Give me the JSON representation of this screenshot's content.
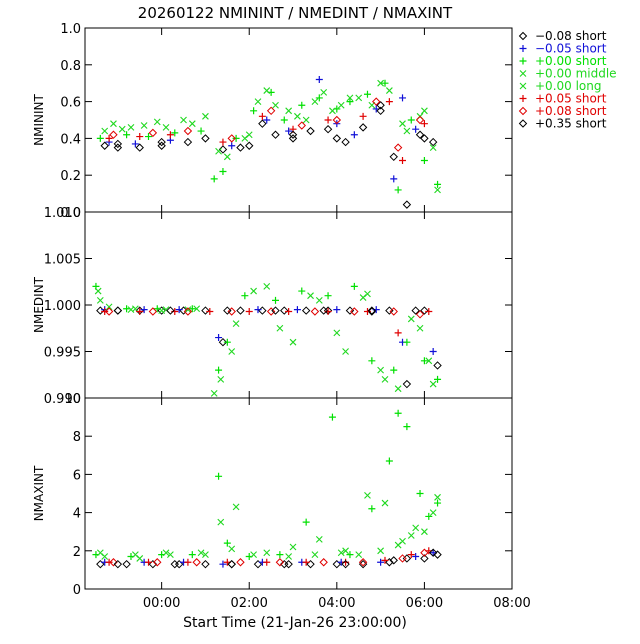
{
  "title": "20260122 NMININT / NMEDINT / NMAXINT",
  "xlabel": "Start Time (21-Jan-26 23:00:00)",
  "colors": {
    "black": "#000000",
    "blue": "#1010d8",
    "green": "#00e000",
    "light_green": "#20d820",
    "red": "#e00000"
  },
  "legend": [
    {
      "symbol": "diamond",
      "color": "#000000",
      "label": "−0.08 short"
    },
    {
      "symbol": "plus",
      "color": "#1010d8",
      "label": "−0.05 short"
    },
    {
      "symbol": "plus",
      "color": "#00e000",
      "label": "+0.00 short"
    },
    {
      "symbol": "cross",
      "color": "#20d820",
      "label": "+0.00 middle"
    },
    {
      "symbol": "cross",
      "color": "#20d820",
      "label": "+0.00 long"
    },
    {
      "symbol": "plus",
      "color": "#e00000",
      "label": "+0.05 short"
    },
    {
      "symbol": "diamond",
      "color": "#e00000",
      "label": "+0.08 short"
    },
    {
      "symbol": "diamond",
      "color": "#000000",
      "label": "+0.35 short"
    }
  ],
  "chart_data": [
    {
      "type": "scatter",
      "ylabel": "NMININT",
      "xlim": [
        -0.75,
        9
      ],
      "ylim": [
        0.0,
        1.0
      ],
      "yticks": [
        "0.0",
        "0.2",
        "0.4",
        "0.6",
        "0.8",
        "1.0"
      ],
      "ytick_values": [
        0.0,
        0.2,
        0.4,
        0.6,
        0.8,
        1.0
      ],
      "show_x_labels": false,
      "series": [
        {
          "name": "-0.08 short",
          "symbol": "diamond",
          "color": "#000000",
          "x": [
            -0.3,
            0.0,
            0.5,
            1.0,
            1.6,
            2.4,
            2.8,
            3.3,
            3.6,
            4.0,
            4.4,
            4.8,
            5.2,
            5.6,
            6.0,
            6.3,
            6.6,
            6.9,
            7.2
          ],
          "y": [
            0.36,
            0.35,
            0.35,
            0.36,
            0.38,
            0.34,
            0.35,
            0.48,
            0.42,
            0.4,
            0.44,
            0.45,
            0.38,
            0.46,
            0.58,
            0.3,
            0.04,
            0.42,
            0.38
          ]
        },
        {
          "name": "-0.05 short",
          "symbol": "plus",
          "color": "#1010d8",
          "x": [
            -0.2,
            0.4,
            1.2,
            2.6,
            3.4,
            3.9,
            4.6,
            5.0,
            5.4,
            5.9,
            6.3,
            6.5,
            6.8
          ],
          "y": [
            0.38,
            0.37,
            0.39,
            0.36,
            0.5,
            0.44,
            0.72,
            0.48,
            0.42,
            0.56,
            0.18,
            0.62,
            0.45
          ]
        },
        {
          "name": "+0.00 short",
          "symbol": "plus",
          "color": "#00e000",
          "x": [
            -0.4,
            0.2,
            0.7,
            1.3,
            1.9,
            2.2,
            2.4,
            2.7,
            3.1,
            3.5,
            3.8,
            4.2,
            4.6,
            5.0,
            5.3,
            5.7,
            6.1,
            6.4,
            6.7,
            7.0,
            7.3
          ],
          "y": [
            0.4,
            0.42,
            0.41,
            0.43,
            0.44,
            0.18,
            0.22,
            0.4,
            0.55,
            0.65,
            0.5,
            0.58,
            0.62,
            0.56,
            0.6,
            0.64,
            0.7,
            0.12,
            0.5,
            0.28,
            0.15
          ]
        },
        {
          "name": "+0.00 middle",
          "symbol": "cross",
          "color": "#20d820",
          "x": [
            -0.3,
            0.1,
            0.6,
            1.1,
            1.7,
            2.3,
            2.9,
            3.2,
            3.6,
            4.1,
            4.5,
            4.9,
            5.3,
            5.8,
            6.2,
            6.6,
            7.0,
            7.3
          ],
          "y": [
            0.44,
            0.45,
            0.47,
            0.46,
            0.48,
            0.33,
            0.4,
            0.6,
            0.58,
            0.52,
            0.6,
            0.55,
            0.62,
            0.58,
            0.66,
            0.44,
            0.55,
            0.12
          ]
        },
        {
          "name": "+0.00 long",
          "symbol": "cross",
          "color": "#20d820",
          "x": [
            -0.1,
            0.3,
            0.9,
            1.5,
            2.0,
            2.5,
            3.0,
            3.4,
            3.9,
            4.3,
            4.7,
            5.1,
            5.5,
            6.0,
            6.5,
            6.9,
            7.2
          ],
          "y": [
            0.48,
            0.46,
            0.49,
            0.5,
            0.52,
            0.3,
            0.42,
            0.66,
            0.55,
            0.5,
            0.65,
            0.58,
            0.62,
            0.7,
            0.48,
            0.52,
            0.35
          ]
        },
        {
          "name": "+0.05 short",
          "symbol": "plus",
          "color": "#e00000",
          "x": [
            -0.2,
            0.5,
            1.2,
            2.4,
            3.3,
            4.0,
            4.8,
            5.6,
            6.2,
            6.5,
            7.0
          ],
          "y": [
            0.4,
            0.41,
            0.42,
            0.38,
            0.52,
            0.45,
            0.5,
            0.52,
            0.6,
            0.28,
            0.48
          ]
        },
        {
          "name": "+0.08 short",
          "symbol": "diamond",
          "color": "#e00000",
          "x": [
            -0.1,
            0.8,
            1.6,
            2.6,
            3.5,
            4.2,
            5.0,
            5.9,
            6.4,
            6.9
          ],
          "y": [
            0.42,
            0.43,
            0.44,
            0.4,
            0.55,
            0.47,
            0.5,
            0.6,
            0.35,
            0.5
          ]
        },
        {
          "name": "+0.35 short",
          "symbol": "diamond",
          "color": "#000000",
          "x": [
            0.0,
            1.0,
            2.0,
            3.0,
            4.0,
            5.0,
            6.0,
            7.0
          ],
          "y": [
            0.37,
            0.38,
            0.4,
            0.36,
            0.42,
            0.4,
            0.55,
            0.4
          ]
        }
      ]
    },
    {
      "type": "scatter",
      "ylabel": "NMEDINT",
      "xlim": [
        -0.75,
        9
      ],
      "ylim": [
        0.99,
        1.01
      ],
      "yticks": [
        "0.990",
        "0.995",
        "1.000",
        "1.005",
        "1.010"
      ],
      "ytick_values": [
        0.99,
        0.995,
        1.0,
        1.005,
        1.01
      ],
      "show_x_labels": false,
      "series": [
        {
          "name": "-0.08 short",
          "symbol": "diamond",
          "color": "#000000",
          "x": [
            -0.4,
            0.0,
            0.5,
            1.0,
            1.5,
            2.0,
            2.4,
            2.8,
            3.3,
            3.8,
            4.3,
            4.8,
            5.3,
            5.8,
            6.2,
            6.6,
            7.0,
            7.3
          ],
          "y": [
            0.9994,
            0.9994,
            0.9994,
            0.9994,
            0.9994,
            0.9994,
            0.996,
            0.9994,
            0.9994,
            0.9994,
            0.9994,
            0.9994,
            0.9994,
            0.9993,
            0.9994,
            0.9915,
            0.9994,
            0.9935
          ]
        },
        {
          "name": "-0.05 short",
          "symbol": "plus",
          "color": "#1010d8",
          "x": [
            -0.3,
            0.6,
            1.4,
            2.3,
            3.2,
            4.1,
            5.0,
            5.9,
            6.5,
            7.2
          ],
          "y": [
            0.9995,
            0.9995,
            0.9995,
            0.9965,
            0.9995,
            0.9995,
            0.9995,
            0.9995,
            0.996,
            0.995
          ]
        },
        {
          "name": "+0.00 short",
          "symbol": "plus",
          "color": "#00e000",
          "x": [
            -0.5,
            0.2,
            0.9,
            1.7,
            2.3,
            2.5,
            2.9,
            3.6,
            4.2,
            4.8,
            5.4,
            5.8,
            6.3,
            6.6,
            7.0,
            7.3
          ],
          "y": [
            1.002,
            0.9996,
            0.9996,
            0.9996,
            0.993,
            0.996,
            1.001,
            1.0005,
            1.0015,
            1.001,
            1.002,
            0.994,
            0.993,
            0.996,
            0.994,
            0.992
          ]
        },
        {
          "name": "+0.00 middle",
          "symbol": "cross",
          "color": "#20d820",
          "x": [
            -0.45,
            -0.2,
            0.4,
            1.1,
            1.8,
            2.35,
            2.6,
            3.1,
            3.7,
            4.4,
            5.0,
            5.6,
            6.0,
            6.4,
            6.9,
            7.2
          ],
          "y": [
            1.0015,
            0.9998,
            0.9996,
            0.9995,
            0.9996,
            0.992,
            0.995,
            1.0015,
            0.9975,
            1.001,
            0.997,
            1.0008,
            0.993,
            0.991,
            0.9975,
            0.9915
          ]
        },
        {
          "name": "+0.00 long",
          "symbol": "cross",
          "color": "#20d820",
          "x": [
            -0.4,
            0.3,
            1.0,
            1.6,
            2.2,
            2.7,
            3.4,
            4.0,
            4.6,
            5.2,
            5.7,
            6.1,
            6.7,
            7.1
          ],
          "y": [
            1.0005,
            0.9995,
            0.9994,
            0.9995,
            0.9905,
            0.998,
            1.002,
            0.996,
            1.0005,
            0.995,
            1.0012,
            0.992,
            0.9985,
            0.994
          ]
        },
        {
          "name": "+0.05 short",
          "symbol": "plus",
          "color": "#e00000",
          "x": [
            -0.3,
            0.5,
            1.3,
            2.1,
            3.0,
            3.9,
            4.8,
            5.7,
            6.4,
            7.1
          ],
          "y": [
            0.9993,
            0.9993,
            0.9993,
            0.9993,
            0.9993,
            0.9993,
            0.9993,
            0.9993,
            0.997,
            0.9993
          ]
        },
        {
          "name": "+0.08 short",
          "symbol": "diamond",
          "color": "#e00000",
          "x": [
            -0.2,
            0.8,
            1.6,
            2.6,
            3.5,
            4.5,
            5.4,
            6.3,
            6.9
          ],
          "y": [
            0.9993,
            0.9993,
            0.9993,
            0.9993,
            0.9993,
            0.9993,
            0.9993,
            0.9993,
            0.999
          ]
        },
        {
          "name": "+0.35 short",
          "symbol": "diamond",
          "color": "#000000",
          "x": [
            0.0,
            1.2,
            2.5,
            3.6,
            4.7,
            5.8,
            6.8
          ],
          "y": [
            0.9994,
            0.9994,
            0.9994,
            0.9994,
            0.9994,
            0.9994,
            0.9994
          ]
        }
      ]
    },
    {
      "type": "scatter",
      "ylabel": "NMAXINT",
      "xlim": [
        -0.75,
        9
      ],
      "ylim": [
        0,
        10
      ],
      "yticks": [
        "0",
        "2",
        "4",
        "6",
        "8",
        "10"
      ],
      "ytick_values": [
        0,
        2,
        4,
        6,
        8,
        10
      ],
      "xticks": [
        "00:00",
        "02:00",
        "04:00",
        "06:00",
        "08:00"
      ],
      "xtick_values": [
        1,
        3,
        5,
        7,
        9
      ],
      "show_x_labels": true,
      "series": [
        {
          "name": "-0.08 short",
          "symbol": "diamond",
          "color": "#000000",
          "x": [
            -0.4,
            0.2,
            0.8,
            1.4,
            2.0,
            2.6,
            3.2,
            3.8,
            4.4,
            5.0,
            5.6,
            6.2,
            6.6,
            7.0,
            7.3
          ],
          "y": [
            1.3,
            1.3,
            1.3,
            1.3,
            1.3,
            1.3,
            1.3,
            1.3,
            1.3,
            1.3,
            1.3,
            1.4,
            1.6,
            1.6,
            1.8
          ]
        },
        {
          "name": "-0.05 short",
          "symbol": "plus",
          "color": "#1010d8",
          "x": [
            -0.3,
            0.6,
            1.5,
            2.4,
            3.3,
            4.2,
            5.1,
            6.0,
            6.8,
            7.2
          ],
          "y": [
            1.4,
            1.4,
            1.4,
            1.3,
            1.4,
            1.4,
            1.4,
            1.4,
            1.7,
            1.9
          ]
        },
        {
          "name": "+0.00 short",
          "symbol": "plus",
          "color": "#00e000",
          "x": [
            -0.5,
            0.3,
            1.0,
            1.7,
            2.3,
            2.5,
            3.0,
            3.7,
            4.3,
            4.9,
            5.3,
            5.8,
            6.2,
            6.4,
            6.6,
            6.9,
            7.1,
            7.3
          ],
          "y": [
            1.8,
            1.7,
            1.8,
            1.8,
            5.9,
            2.4,
            1.7,
            1.8,
            3.5,
            9.0,
            1.8,
            4.2,
            6.7,
            9.2,
            8.5,
            5.0,
            3.8,
            4.5
          ]
        },
        {
          "name": "+0.00 middle",
          "symbol": "cross",
          "color": "#20d820",
          "x": [
            -0.4,
            0.4,
            1.1,
            1.9,
            2.35,
            2.7,
            3.4,
            4.0,
            4.6,
            5.2,
            5.7,
            6.1,
            6.5,
            6.8,
            7.2
          ],
          "y": [
            1.9,
            1.8,
            1.9,
            1.9,
            3.5,
            4.3,
            1.9,
            2.2,
            2.6,
            2.0,
            4.9,
            4.5,
            2.5,
            3.2,
            4.0
          ]
        },
        {
          "name": "+0.00 long",
          "symbol": "cross",
          "color": "#20d820",
          "x": [
            -0.3,
            0.5,
            1.2,
            2.0,
            2.6,
            3.1,
            3.9,
            4.5,
            5.1,
            5.5,
            6.0,
            6.4,
            6.7,
            7.0,
            7.3
          ],
          "y": [
            1.7,
            1.6,
            1.8,
            1.8,
            2.1,
            1.8,
            1.7,
            1.8,
            1.9,
            1.8,
            2.0,
            2.3,
            2.8,
            3.0,
            4.8
          ]
        },
        {
          "name": "+0.05 short",
          "symbol": "plus",
          "color": "#e00000",
          "x": [
            -0.2,
            0.7,
            1.6,
            2.5,
            3.4,
            4.3,
            5.2,
            6.1,
            6.7,
            7.1
          ],
          "y": [
            1.4,
            1.4,
            1.4,
            1.4,
            1.4,
            1.4,
            1.4,
            1.5,
            1.8,
            2.0
          ]
        },
        {
          "name": "+0.08 short",
          "symbol": "diamond",
          "color": "#e00000",
          "x": [
            -0.1,
            0.9,
            1.8,
            2.8,
            3.7,
            4.7,
            5.6,
            6.5,
            7.0
          ],
          "y": [
            1.4,
            1.4,
            1.4,
            1.4,
            1.4,
            1.4,
            1.4,
            1.6,
            1.9
          ]
        },
        {
          "name": "+0.35 short",
          "symbol": "diamond",
          "color": "#000000",
          "x": [
            0.0,
            1.3,
            2.6,
            3.9,
            5.2,
            6.3,
            7.2
          ],
          "y": [
            1.3,
            1.3,
            1.3,
            1.3,
            1.3,
            1.5,
            1.9
          ]
        }
      ]
    }
  ]
}
